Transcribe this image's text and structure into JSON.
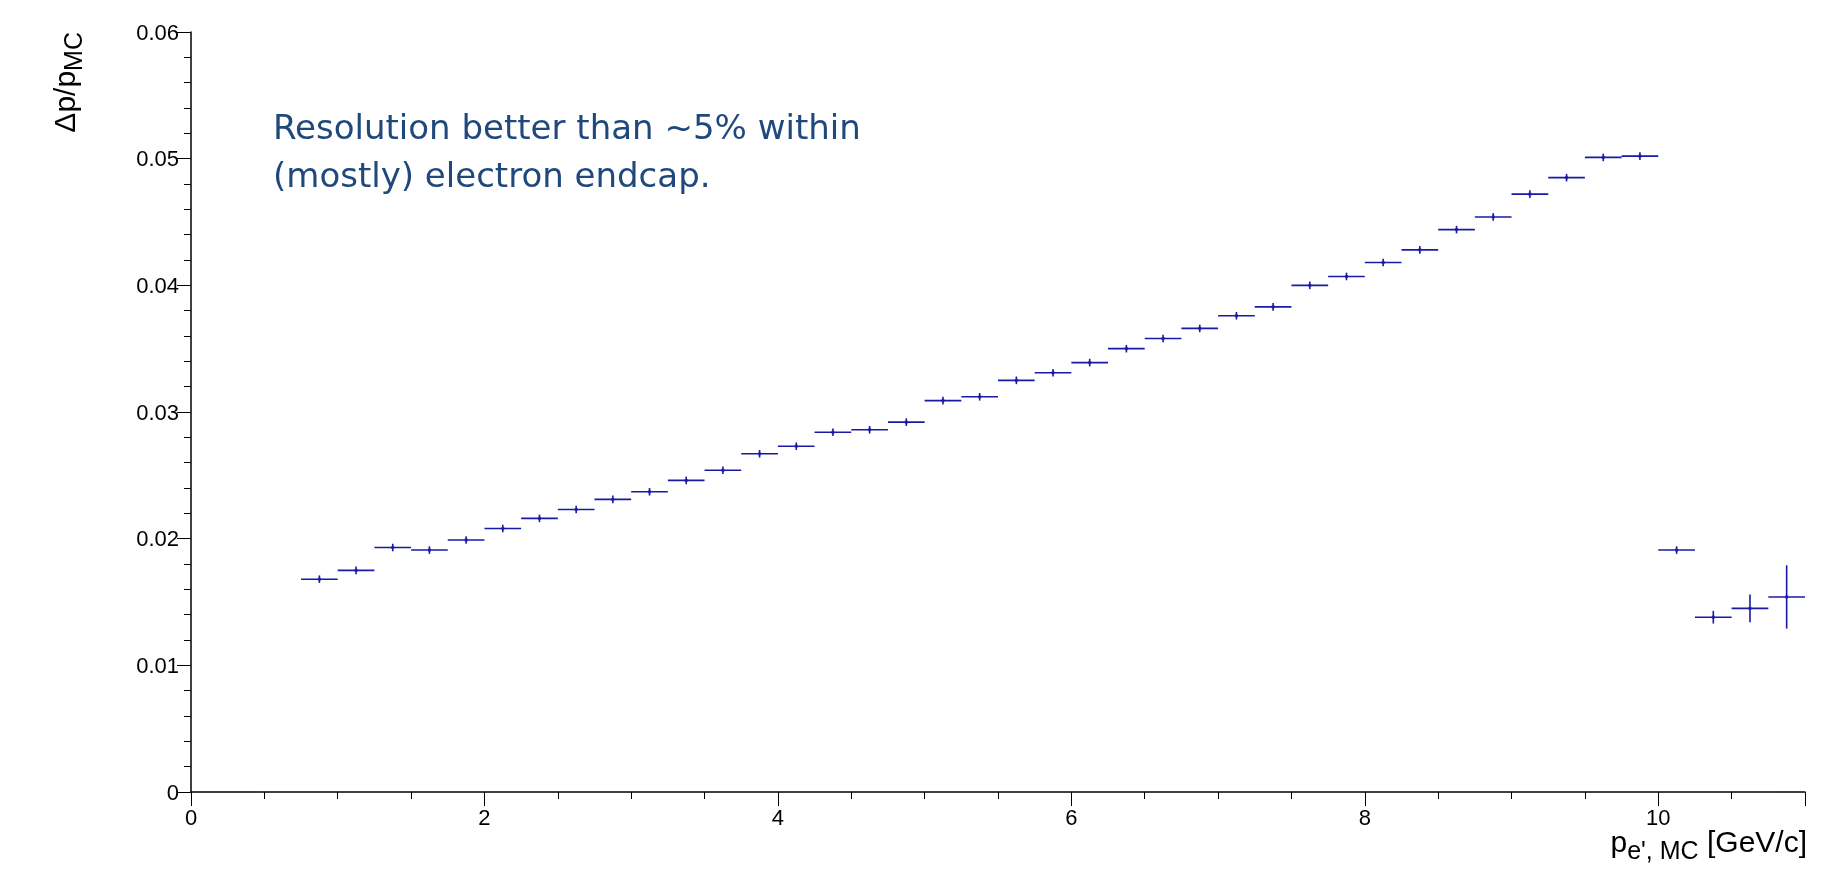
{
  "chart_data": {
    "type": "scatter",
    "xlabel": "p$_{e', MC}$ [GeV/c]",
    "ylabel": "Δp/p$_{MC}$",
    "annotations": [
      "Resolution better than ~5% within (mostly) electron endcap."
    ],
    "x": [
      0.875,
      1.125,
      1.375,
      1.625,
      1.875,
      2.125,
      2.375,
      2.625,
      2.875,
      3.125,
      3.375,
      3.625,
      3.875,
      4.125,
      4.375,
      4.625,
      4.875,
      5.125,
      5.375,
      5.625,
      5.875,
      6.125,
      6.375,
      6.625,
      6.875,
      7.125,
      7.375,
      7.625,
      7.875,
      8.125,
      8.375,
      8.625,
      8.875,
      9.125,
      9.375,
      9.625,
      9.875,
      10.125,
      10.375,
      10.625,
      10.875
    ],
    "series": [
      {
        "color": "#1a1aa6",
        "values": [
          0.0168,
          0.0175,
          0.0193,
          0.0191,
          0.0199,
          0.0208,
          0.0216,
          0.0223,
          0.0231,
          0.0237,
          0.0246,
          0.0254,
          0.0267,
          0.0273,
          0.0284,
          0.0286,
          0.0292,
          0.0309,
          0.0312,
          0.0325,
          0.0331,
          0.0339,
          0.035,
          0.0358,
          0.0366,
          0.0376,
          0.0383,
          0.04,
          0.0407,
          0.0418,
          0.0428,
          0.0444,
          0.0454,
          0.0472,
          0.0485,
          0.0501,
          0.0502,
          0.0191,
          0.0138,
          0.0145,
          0.0154
        ],
        "errors": [
          0.0003,
          0.0003,
          0.0003,
          0.0003,
          0.0003,
          0.0003,
          0.0003,
          0.0003,
          0.0003,
          0.0003,
          0.0003,
          0.0003,
          0.0003,
          0.0003,
          0.0003,
          0.0003,
          0.0003,
          0.0003,
          0.0003,
          0.0003,
          0.0003,
          0.0003,
          0.0003,
          0.0003,
          0.0003,
          0.0003,
          0.0003,
          0.0003,
          0.0003,
          0.0003,
          0.0003,
          0.0003,
          0.0003,
          0.0003,
          0.0003,
          0.0003,
          0.0003,
          0.0003,
          0.0005,
          0.0011,
          0.0025
        ],
        "xerrors": [
          0.125,
          0.125,
          0.125,
          0.125,
          0.125,
          0.125,
          0.125,
          0.125,
          0.125,
          0.125,
          0.125,
          0.125,
          0.125,
          0.125,
          0.125,
          0.125,
          0.125,
          0.125,
          0.125,
          0.125,
          0.125,
          0.125,
          0.125,
          0.125,
          0.125,
          0.125,
          0.125,
          0.125,
          0.125,
          0.125,
          0.125,
          0.125,
          0.125,
          0.125,
          0.125,
          0.125,
          0.125,
          0.125,
          0.125,
          0.125,
          0.125
        ]
      }
    ],
    "xlim": [
      0,
      11
    ],
    "xticks": [
      0,
      2,
      4,
      6,
      8,
      10
    ],
    "ylim": [
      0,
      0.06
    ],
    "yticks": [
      0,
      0.01,
      0.02,
      0.03,
      0.04,
      0.05,
      0.06
    ],
    "grid": false,
    "marker": "square"
  }
}
